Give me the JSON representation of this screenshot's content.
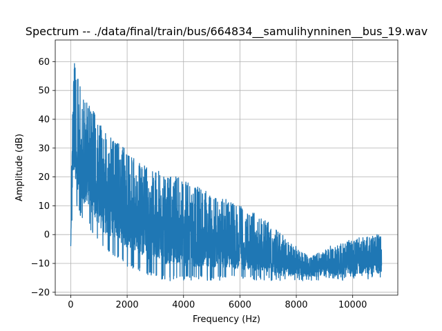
{
  "chart_data": {
    "type": "line",
    "title": "Spectrum -- ./data/final/train/bus/664834__samulihynninen__bus_19.wav",
    "xlabel": "Frequency (Hz)",
    "ylabel": "Amplitude (dB)",
    "xlim": [
      -550,
      11600
    ],
    "ylim": [
      -21,
      67.5
    ],
    "grid": true,
    "line_color": "#1f77b4",
    "xticks": [
      0,
      2000,
      4000,
      6000,
      8000,
      10000
    ],
    "yticks": [
      -20,
      -10,
      0,
      10,
      20,
      30,
      40,
      50,
      60
    ],
    "series": [
      {
        "upper_envelope": {
          "x": [
            0,
            20,
            60,
            100,
            150,
            200,
            250,
            300,
            350,
            400,
            500,
            600,
            700,
            800,
            900,
            1000,
            1200,
            1400,
            1600,
            1800,
            2000,
            2200,
            2400,
            2600,
            2800,
            3000,
            3200,
            3400,
            3600,
            3800,
            4000,
            4200,
            4400,
            4600,
            4800,
            5000,
            5200,
            5400,
            5600,
            5800,
            6000,
            6200,
            6400,
            6600,
            6800,
            7000,
            7200,
            7400,
            7600,
            7800,
            8000,
            8200,
            8400,
            8600,
            8800,
            9000,
            9200,
            9400,
            9600,
            9800,
            10000,
            10200,
            10400,
            10600,
            10800,
            11025
          ],
          "y": [
            -4,
            30,
            55,
            63,
            60,
            52,
            55,
            59,
            50,
            48,
            47,
            46,
            44,
            43,
            41,
            39,
            36,
            34,
            32,
            31,
            29,
            27,
            25,
            24,
            23,
            22,
            22,
            21,
            21,
            20,
            19,
            18,
            17,
            16,
            15,
            14,
            13,
            13,
            12,
            11,
            10,
            9,
            8,
            7,
            6,
            5,
            3,
            1,
            -1,
            -3,
            -4,
            -6,
            -7,
            -7,
            -6,
            -5,
            -4,
            -4,
            -3,
            -2,
            -2,
            -1,
            -1,
            0,
            0,
            1
          ]
        },
        "lower_envelope": {
          "x": [
            0,
            100,
            200,
            400,
            600,
            800,
            1000,
            1500,
            2000,
            2500,
            3000,
            3500,
            4000,
            4500,
            5000,
            5500,
            6000,
            6500,
            7000,
            7500,
            8000,
            9000,
            10000,
            11025
          ],
          "y": [
            -4,
            15,
            10,
            5,
            3,
            0,
            -4,
            -8,
            -11,
            -13,
            -15,
            -16,
            -16,
            -16,
            -16,
            -16,
            -16,
            -16,
            -16,
            -16,
            -16,
            -16,
            -16,
            -16
          ]
        }
      }
    ]
  }
}
